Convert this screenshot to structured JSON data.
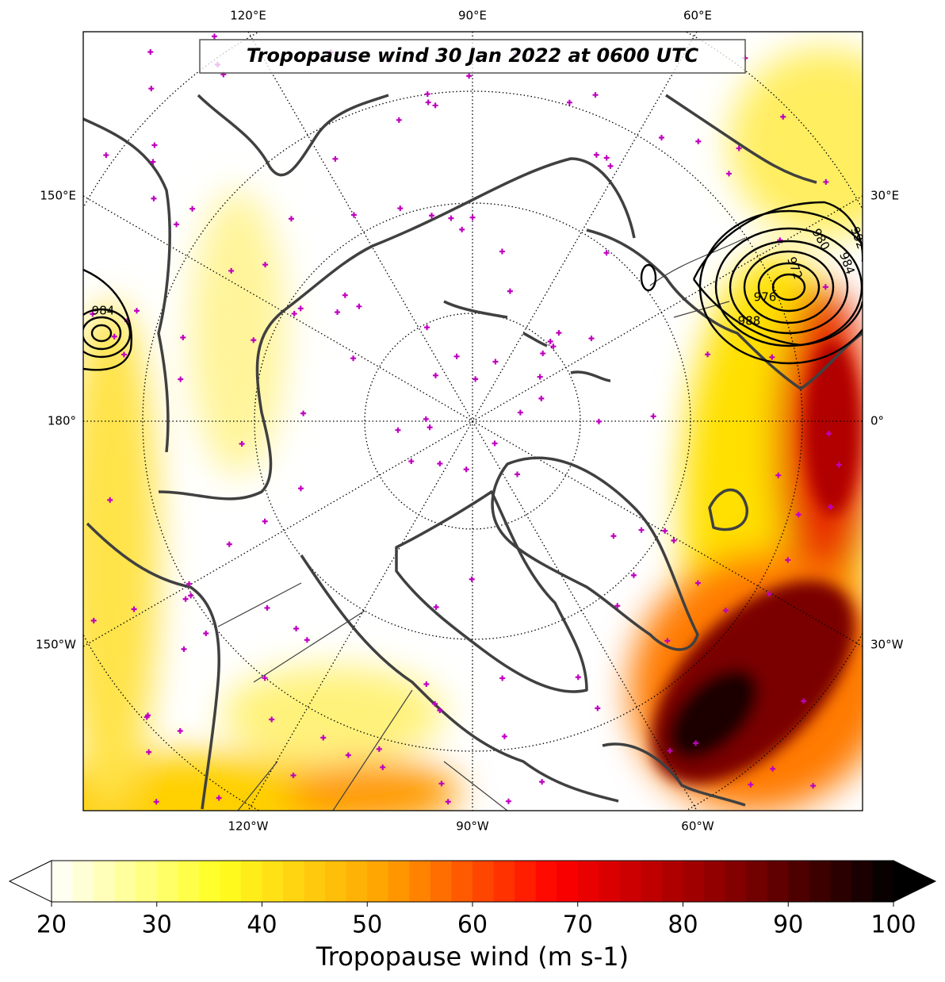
{
  "title": "Tropopause wind 30 Jan 2022 at 0600 UTC",
  "lon_labels": {
    "top": [
      "120°E",
      "90°E",
      "60°E"
    ],
    "left": [
      "150°E",
      "180°",
      "150°W"
    ],
    "right": [
      "30°E",
      "0°",
      "30°W"
    ],
    "bottom": [
      "120°W",
      "90°W",
      "60°W"
    ]
  },
  "contour_labels": [
    "984",
    "980",
    "984",
    "992",
    "976",
    "972",
    "988"
  ],
  "colorbar": {
    "label": "Tropopause wind (m s-1)",
    "lim": [
      20,
      100
    ],
    "ticks": [
      20,
      30,
      40,
      50,
      60,
      70,
      80,
      90,
      100
    ],
    "colormap": [
      "#ffffff",
      "#ffff20",
      "#ffa000",
      "#ff0000",
      "#8b0000",
      "#000000"
    ],
    "extend": "both"
  }
}
